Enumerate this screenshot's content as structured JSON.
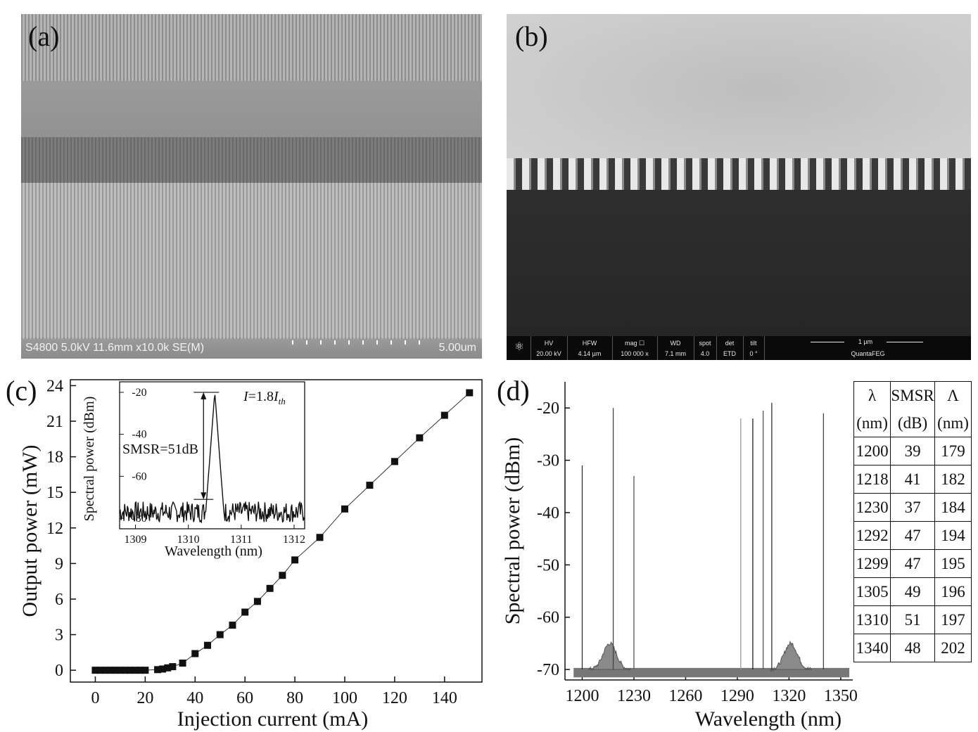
{
  "panels": {
    "a": {
      "label": "(a)",
      "info_left": "S4800 5.0kV 11.6mm x10.0k SE(M)",
      "info_right": "5.00um"
    },
    "b": {
      "label": "(b)",
      "info": {
        "hv_label": "HV",
        "hv_value": "20.00 kV",
        "hfw_label": "HFW",
        "hfw_value": "4.14 µm",
        "mag_label": "mag ☐",
        "mag_value": "100 000 x",
        "wd_label": "WD",
        "wd_value": "7.1 mm",
        "spot_label": "spot",
        "spot_value": "4.0",
        "det_label": "det",
        "det_value": "ETD",
        "tilt_label": "tilt",
        "tilt_value": "0 °",
        "scale_label": "1 µm",
        "instrument": "QuantaFEG"
      }
    },
    "c": {
      "label": "(c)"
    },
    "d": {
      "label": "(d)"
    }
  },
  "chart_data": [
    {
      "id": "c-main",
      "type": "line",
      "xlabel": "Injection current (mA)",
      "ylabel": "Output power (mW)",
      "xlim": [
        -10,
        155
      ],
      "ylim": [
        -1,
        24.5
      ],
      "xticks": [
        0,
        20,
        40,
        60,
        80,
        100,
        120,
        140
      ],
      "yticks": [
        0,
        3,
        6,
        9,
        12,
        15,
        18,
        21,
        24
      ],
      "marker": "square",
      "x": [
        0,
        2,
        4,
        6,
        8,
        10,
        12,
        14,
        16,
        18,
        20,
        25,
        27,
        29,
        31,
        35,
        40,
        45,
        50,
        55,
        60,
        65,
        70,
        75,
        80,
        90,
        100,
        110,
        120,
        130,
        140,
        150
      ],
      "y": [
        0,
        0,
        0,
        0,
        0,
        0,
        0,
        0,
        0,
        0,
        0,
        0.05,
        0.1,
        0.2,
        0.3,
        0.6,
        1.4,
        2.1,
        3.0,
        3.8,
        4.9,
        5.8,
        6.9,
        8.0,
        9.3,
        11.2,
        13.6,
        15.6,
        17.6,
        19.6,
        21.5,
        23.4
      ]
    },
    {
      "id": "c-inset",
      "type": "line",
      "xlabel": "Wavelength (nm)",
      "ylabel": "Spectral power (dBm)",
      "xlim": [
        1308.7,
        1312.2
      ],
      "ylim": [
        -85,
        -15
      ],
      "xticks": [
        1309,
        1310,
        1311,
        1312
      ],
      "yticks": [
        -20,
        -40,
        -60,
        -80
      ],
      "peak_x": 1310.5,
      "peak_y": -20,
      "noise_floor": -77,
      "annotations": {
        "smsr": "SMSR=51dB",
        "current_prefix": "I",
        "current_mid": "=1.8",
        "current_sym": "I",
        "current_sub": "th"
      }
    },
    {
      "id": "d-main",
      "type": "line",
      "xlabel": "Wavelength (nm)",
      "ylabel": "Spectral power (dBm)",
      "xlim": [
        1190,
        1357
      ],
      "ylim": [
        -72,
        -15
      ],
      "xticks": [
        1200,
        1230,
        1260,
        1290,
        1320,
        1350
      ],
      "yticks": [
        -20,
        -30,
        -40,
        -50,
        -60,
        -70
      ],
      "noise_floor": -70,
      "peaks": [
        {
          "x": 1200,
          "y": -31
        },
        {
          "x": 1218,
          "y": -20
        },
        {
          "x": 1230,
          "y": -33
        },
        {
          "x": 1292,
          "y": -22
        },
        {
          "x": 1299,
          "y": -22
        },
        {
          "x": 1305,
          "y": -20.5
        },
        {
          "x": 1310,
          "y": -19
        },
        {
          "x": 1340,
          "y": -21
        }
      ],
      "humps": [
        {
          "x": 1216,
          "y": -65,
          "width": 12
        },
        {
          "x": 1321,
          "y": -65,
          "width": 12
        }
      ],
      "table": {
        "headers": [
          [
            "λ",
            "(nm)"
          ],
          [
            "SMSR",
            "(dB)"
          ],
          [
            "Λ",
            "(nm)"
          ]
        ],
        "rows": [
          [
            "1200",
            "39",
            "179"
          ],
          [
            "1218",
            "41",
            "182"
          ],
          [
            "1230",
            "37",
            "184"
          ],
          [
            "1292",
            "47",
            "194"
          ],
          [
            "1299",
            "47",
            "195"
          ],
          [
            "1305",
            "49",
            "196"
          ],
          [
            "1310",
            "51",
            "197"
          ],
          [
            "1340",
            "48",
            "202"
          ]
        ]
      }
    }
  ]
}
